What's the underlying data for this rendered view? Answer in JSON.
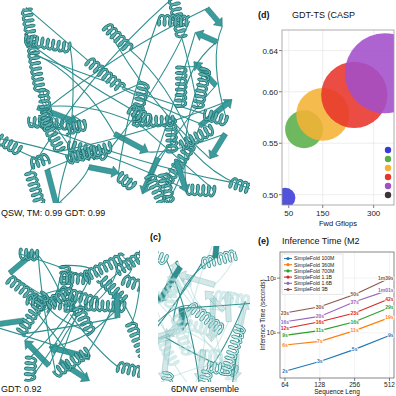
{
  "figure": {
    "panel_labels": {
      "c": "(c)",
      "d": "(d)",
      "e": "(e)"
    },
    "captions": {
      "a": "QSW, TM: 0.99 GDT: 0.99",
      "b": "GDT: 0.92",
      "c": "6DNW ensemble"
    }
  },
  "chart_data": [
    {
      "type": "bubble",
      "title": "GDT-TS (CASP",
      "x_label": "Fwd Gflops",
      "xlim": [
        30,
        360
      ],
      "xticks": [
        50,
        150,
        300
      ],
      "ylim": [
        0.49,
        0.66
      ],
      "yticks": [
        {
          "value": 0.5,
          "label": "0.50"
        },
        0.55,
        {
          "value": 0.6,
          "label": "0.60"
        },
        0.64
      ],
      "grid": true,
      "legend": "right",
      "series": [
        {
          "color": "#3a3ad8",
          "x": [
            40
          ],
          "values": [
            0.497
          ],
          "sizes": [
            100
          ]
        },
        {
          "color": "#5aae4a",
          "x": [
            95
          ],
          "values": [
            0.5635
          ],
          "sizes": [
            360
          ]
        },
        {
          "color": "#f4b234",
          "x": [
            150
          ],
          "values": [
            0.578
          ],
          "sizes": [
            700
          ]
        },
        {
          "color": "#e8342a",
          "x": [
            243
          ],
          "values": [
            0.597
          ],
          "sizes": [
            1100
          ]
        },
        {
          "color": "#a24ec9",
          "x": [
            333
          ],
          "values": [
            0.618
          ],
          "sizes": [
            1600
          ]
        },
        {
          "color": "#3d3434",
          "x": [],
          "values": [],
          "sizes": []
        }
      ]
    },
    {
      "type": "line",
      "title": "Inference Time (M2",
      "x_label": "Sequence Leng",
      "y_label": "Inference Time (seconds)",
      "log": true,
      "xlim": [
        58,
        560
      ],
      "xticks": [
        64,
        128,
        256,
        512
      ],
      "ylim": [
        1.5,
        300
      ],
      "yticks": [
        {
          "value": 10,
          "label": "10¹"
        },
        {
          "value": 100,
          "label": "10²"
        }
      ],
      "grid": true,
      "legend": "upper left",
      "data_labels": true,
      "marker": "circle",
      "x": [
        64,
        128,
        256,
        512
      ],
      "series": [
        {
          "name": "SimpleFold 100M",
          "color": "#1f77b4",
          "values": [
            2,
            3,
            5,
            9
          ],
          "value_labels": [
            "2s",
            "3s",
            "5s",
            "9s"
          ]
        },
        {
          "name": "SimpleFold 360M",
          "color": "#ff7f0e",
          "values": [
            6,
            7,
            11,
            19
          ],
          "value_labels": [
            "6s",
            "7s",
            "11s",
            "19s"
          ]
        },
        {
          "name": "SimpleFold 700M",
          "color": "#2ca02c",
          "values": [
            9,
            11,
            16,
            29
          ],
          "value_labels": [
            "9s",
            "11s",
            "16s",
            "29s"
          ]
        },
        {
          "name": "SimpleFold 1.1B",
          "color": "#d62728",
          "values": [
            12,
            16,
            23,
            42
          ],
          "value_labels": [
            "12s",
            "16s",
            "23s",
            "42s"
          ]
        },
        {
          "name": "SimpleFold 1.6B",
          "color": "#9467bd",
          "values": [
            16,
            20,
            37,
            61
          ],
          "value_labels": [
            "16s",
            "20s",
            "37s",
            "1m01s"
          ]
        },
        {
          "name": "SimpleFold 3B",
          "color": "#8c564b",
          "values": [
            23,
            30,
            50,
            99
          ],
          "value_labels": [
            "23s",
            "30s",
            "50s",
            "1m39s"
          ]
        }
      ]
    }
  ]
}
